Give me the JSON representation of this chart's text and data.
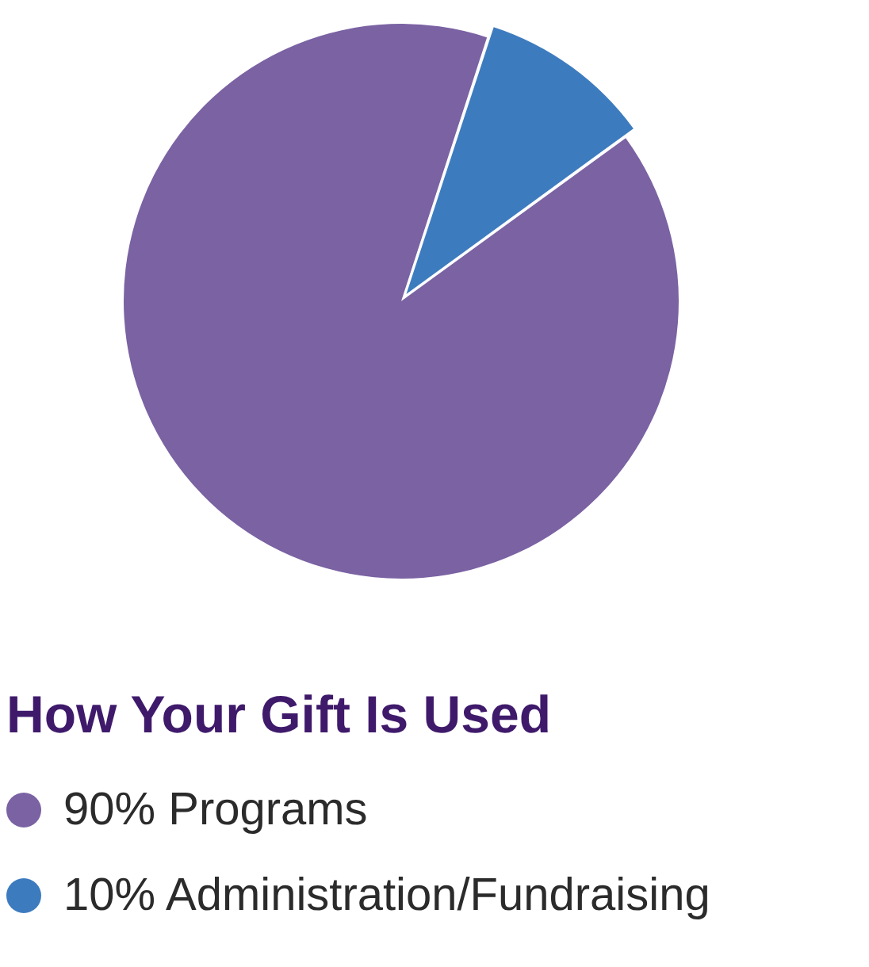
{
  "chart_data": {
    "type": "pie",
    "title": "How Your Gift Is Used",
    "categories": [
      "90% Programs",
      "10% Administration/Fundraising"
    ],
    "values": [
      90,
      10
    ],
    "colors": [
      "#7a62a3",
      "#3d7bbf"
    ],
    "legend": "bottom"
  }
}
